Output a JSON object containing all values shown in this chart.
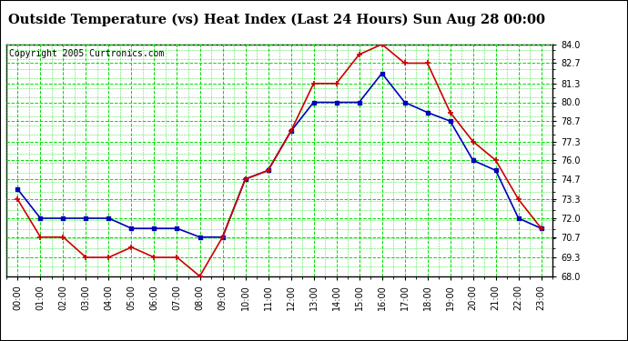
{
  "title": "Outside Temperature (vs) Heat Index (Last 24 Hours) Sun Aug 28 00:00",
  "copyright": "Copyright 2005 Curtronics.com",
  "hours": [
    "00:00",
    "01:00",
    "02:00",
    "03:00",
    "04:00",
    "05:00",
    "06:00",
    "07:00",
    "08:00",
    "09:00",
    "10:00",
    "11:00",
    "12:00",
    "13:00",
    "14:00",
    "15:00",
    "16:00",
    "17:00",
    "18:00",
    "19:00",
    "20:00",
    "21:00",
    "22:00",
    "23:00"
  ],
  "outside_temp": [
    74.0,
    72.0,
    72.0,
    72.0,
    72.0,
    71.3,
    71.3,
    71.3,
    70.7,
    70.7,
    74.7,
    75.3,
    78.0,
    80.0,
    80.0,
    80.0,
    82.0,
    80.0,
    79.3,
    78.7,
    76.0,
    75.3,
    72.0,
    71.3
  ],
  "heat_index": [
    73.3,
    70.7,
    70.7,
    69.3,
    69.3,
    70.0,
    69.3,
    69.3,
    68.0,
    70.7,
    74.7,
    75.3,
    78.0,
    81.3,
    81.3,
    83.3,
    84.0,
    82.7,
    82.7,
    79.3,
    77.3,
    76.0,
    73.3,
    71.3
  ],
  "ylim_min": 68.0,
  "ylim_max": 84.0,
  "yticks": [
    68.0,
    69.3,
    70.7,
    72.0,
    73.3,
    74.7,
    76.0,
    77.3,
    78.7,
    80.0,
    81.3,
    82.7,
    84.0
  ],
  "blue_color": "#0000bb",
  "red_color": "#cc0000",
  "grid_color": "#00dd00",
  "bg_color": "#ffffff",
  "plot_bg_color": "#ffffff",
  "title_fontsize": 10.5,
  "tick_fontsize": 7,
  "copyright_fontsize": 7
}
